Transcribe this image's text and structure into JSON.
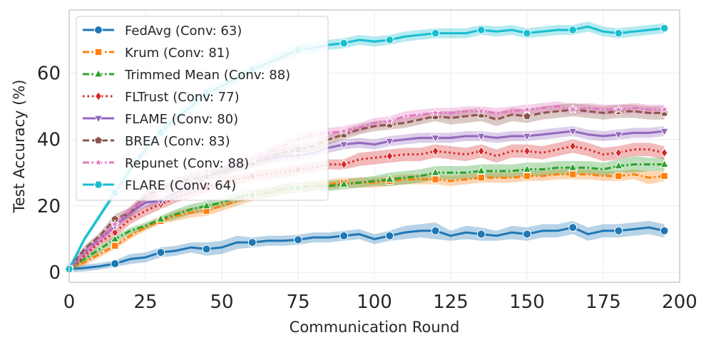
{
  "chart_data": {
    "type": "line",
    "title": "",
    "xlabel": "Communication Round",
    "ylabel": "Test Accuracy (%)",
    "xlim": [
      0,
      200
    ],
    "ylim": [
      -3,
      79
    ],
    "xticks": [
      0,
      25,
      50,
      75,
      100,
      125,
      150,
      175,
      200
    ],
    "yticks": [
      0,
      20,
      40,
      60
    ],
    "grid": true,
    "legend_position": "top-left",
    "x": [
      0,
      5,
      10,
      15,
      20,
      25,
      30,
      35,
      40,
      45,
      50,
      55,
      60,
      65,
      70,
      75,
      80,
      85,
      90,
      95,
      100,
      105,
      110,
      115,
      120,
      125,
      130,
      135,
      140,
      145,
      150,
      155,
      160,
      165,
      170,
      175,
      180,
      185,
      190,
      195
    ],
    "marker_every": 15,
    "series": [
      {
        "name": "FedAvg (Conv: 63)",
        "color": "#1f77b4",
        "dash": "solid",
        "marker": "circle",
        "values": [
          1,
          1.3,
          1.8,
          2.6,
          4,
          4.5,
          6,
          6.5,
          7.5,
          7,
          7.5,
          9,
          9,
          9.5,
          9.5,
          9.8,
          10.5,
          10.5,
          11,
          11.5,
          10,
          11,
          12,
          12.5,
          12.5,
          11,
          12,
          11.5,
          11,
          12,
          11.5,
          12.5,
          12.5,
          13.5,
          11.5,
          12.5,
          12.5,
          13,
          13.5,
          12.5
        ],
        "band": [
          1,
          1,
          1,
          1,
          1.5,
          1.5,
          1.5,
          1.5,
          1.5,
          2,
          2,
          2,
          1.5,
          1.5,
          1.5,
          1.5,
          1.5,
          1.5,
          1.5,
          1.5,
          1.5,
          1.5,
          2,
          2,
          2.5,
          1.5,
          2,
          2,
          1.5,
          2,
          2,
          2,
          2,
          2,
          2,
          2,
          2,
          2,
          2,
          2
        ]
      },
      {
        "name": "Krum (Conv: 81)",
        "color": "#ff7f0e",
        "dash": "dashdot",
        "marker": "square",
        "values": [
          1,
          3,
          5.5,
          8,
          11,
          13.5,
          15.5,
          17,
          18,
          18.5,
          20,
          21.5,
          23,
          24,
          25,
          25.5,
          26,
          26.5,
          27,
          27,
          27,
          27.5,
          28,
          28,
          28,
          27.5,
          28,
          28.5,
          28.5,
          28.5,
          29,
          29,
          29.5,
          29.5,
          29.5,
          29,
          29,
          29.5,
          28.5,
          29
        ],
        "band": [
          1,
          1,
          1,
          1,
          1,
          1,
          1,
          1.5,
          1.5,
          1.5,
          1.5,
          1.5,
          1.5,
          1.5,
          1.5,
          1.5,
          1.5,
          1.5,
          1.5,
          1.5,
          1.5,
          1.5,
          1.5,
          1.5,
          1.5,
          1.5,
          1.5,
          1.5,
          1.5,
          1.5,
          1.5,
          1.5,
          1.5,
          1.5,
          1.5,
          1.5,
          1.5,
          1.5,
          2,
          1.5
        ]
      },
      {
        "name": "Trimmed Mean (Conv: 88)",
        "color": "#2ca02c",
        "dash": "dashdot",
        "marker": "triangle-up",
        "values": [
          1,
          4,
          7,
          10,
          12.5,
          14,
          16,
          17.5,
          19,
          20,
          21,
          22.5,
          23.5,
          24,
          25,
          25.5,
          26,
          26,
          26.5,
          27,
          27.5,
          28,
          28.5,
          29,
          30,
          30,
          30,
          30.5,
          30.5,
          30.5,
          31,
          31,
          31.5,
          31.5,
          31.5,
          31,
          32,
          32.5,
          32.5,
          32.5
        ],
        "band": [
          1,
          1,
          1,
          1,
          1,
          1,
          1,
          1.5,
          1.5,
          1.5,
          1.5,
          1.5,
          1.5,
          1.5,
          1.5,
          1.5,
          1.5,
          1.5,
          1.5,
          1.5,
          1.5,
          2,
          2,
          2,
          2,
          2,
          2,
          2,
          2,
          2,
          2,
          2,
          2,
          2,
          2,
          2,
          2,
          2.5,
          2,
          2
        ]
      },
      {
        "name": "FLTrust (Conv: 77)",
        "color": "#d62728",
        "dash": "dot",
        "marker": "diamond",
        "values": [
          1,
          5,
          9,
          12,
          16,
          18.5,
          20.5,
          22.5,
          24,
          25.5,
          27,
          28,
          29,
          29.5,
          30,
          31,
          31.5,
          32.5,
          32.5,
          34,
          34.5,
          35,
          35.5,
          35.5,
          36.5,
          36,
          35.5,
          36.5,
          35,
          36.5,
          36.5,
          36,
          37,
          38,
          37,
          35.5,
          36,
          37,
          37,
          36
        ],
        "band": [
          1,
          1,
          1,
          1.5,
          1.5,
          1.5,
          1.5,
          1.5,
          1.5,
          1.5,
          1.5,
          1.5,
          1.5,
          1.5,
          1.5,
          1.5,
          1.5,
          1.5,
          1.5,
          2,
          2,
          2,
          2,
          2,
          2,
          2,
          2,
          2,
          2,
          2,
          2,
          2,
          2,
          2,
          2,
          2,
          2,
          2,
          2,
          2
        ]
      },
      {
        "name": "FLAME (Conv: 80)",
        "color": "#9467bd",
        "dash": "solid",
        "marker": "triangle-down",
        "values": [
          1,
          6,
          10,
          14,
          18,
          21,
          21.5,
          24,
          26,
          29,
          30.5,
          32,
          33,
          34,
          35,
          35,
          36,
          37.5,
          38.5,
          39,
          38.5,
          39.5,
          40,
          40.5,
          40.5,
          40.5,
          41,
          41,
          40.5,
          41,
          41,
          41.5,
          42,
          42.5,
          41.5,
          41,
          41.5,
          42,
          42,
          42.5
        ],
        "band": [
          1,
          1,
          1,
          1,
          1.5,
          1.5,
          1.5,
          1.5,
          1.5,
          1.5,
          1.5,
          1.5,
          1.5,
          1.5,
          1.5,
          1.5,
          1.5,
          1.5,
          1.5,
          1.5,
          1.5,
          1.5,
          1.5,
          1.5,
          1.5,
          1.5,
          1.5,
          1.5,
          1.5,
          1.5,
          1.5,
          1.5,
          1.5,
          1.5,
          1.5,
          1.5,
          1.5,
          1.5,
          1.5,
          1.5
        ]
      },
      {
        "name": "BREA (Conv: 83)",
        "color": "#8c564b",
        "dash": "dash",
        "marker": "pentagon",
        "values": [
          1,
          7,
          11,
          16,
          18,
          23,
          25,
          27,
          28,
          29,
          30,
          31.5,
          33,
          34.5,
          36,
          37,
          38,
          40,
          41.5,
          43,
          44,
          44.5,
          45,
          46,
          47,
          46.5,
          47,
          47.5,
          46,
          47.5,
          47,
          48,
          48.5,
          49,
          48.5,
          48,
          48.5,
          48.5,
          48,
          48
        ],
        "band": [
          1,
          1,
          1,
          1.5,
          1.5,
          1.5,
          1.5,
          1.5,
          1.5,
          1.5,
          1.5,
          1.5,
          1.5,
          1.5,
          1.5,
          1.5,
          1.5,
          1.5,
          1.5,
          1.5,
          1.5,
          1.5,
          1.5,
          1.5,
          1.5,
          2,
          2,
          2,
          2,
          2,
          2,
          2,
          2,
          2,
          2,
          2,
          2,
          2,
          2,
          2
        ]
      },
      {
        "name": "Repunet (Conv: 88)",
        "color": "#e377c2",
        "dash": "dashdot",
        "marker": "star",
        "values": [
          1,
          6,
          10,
          14.5,
          18.5,
          22,
          24.5,
          27,
          29,
          30.5,
          31.5,
          33,
          34,
          36,
          38,
          40,
          41.5,
          42,
          42.5,
          43.5,
          45,
          45.5,
          47,
          47.5,
          48,
          48,
          48.5,
          48.5,
          48,
          48.5,
          49,
          49.5,
          50,
          49,
          49.5,
          49,
          49,
          49.5,
          49,
          49
        ],
        "band": [
          1,
          1,
          1,
          1.5,
          1.5,
          1.5,
          1.5,
          1.5,
          1.5,
          1.5,
          1.5,
          1.5,
          1.5,
          1.5,
          1.5,
          1.5,
          1.5,
          1.5,
          1.5,
          1.5,
          1.5,
          1.5,
          1.5,
          1.5,
          1.5,
          1.5,
          1.5,
          1.5,
          1.5,
          1.5,
          1.5,
          1.5,
          1.5,
          1.5,
          1.5,
          1.5,
          1.5,
          1.5,
          1.5,
          1.5
        ]
      },
      {
        "name": "FLARE (Conv: 64)",
        "color": "#17becf",
        "dash": "solid",
        "marker": "hexagon",
        "values": [
          1,
          10,
          17,
          24,
          31,
          37,
          42,
          46.5,
          50,
          54,
          56,
          58.5,
          61,
          63,
          65,
          67,
          67.5,
          68.5,
          69,
          70,
          69.5,
          70,
          71,
          71.5,
          72,
          72,
          72,
          73,
          72.5,
          73,
          72,
          72.5,
          73,
          73,
          74,
          72.5,
          72,
          72.5,
          73,
          73.5
        ],
        "band": [
          1,
          1,
          1,
          1,
          1.5,
          1.5,
          1.5,
          1.5,
          1.5,
          1.5,
          1.5,
          1.5,
          1.5,
          1.5,
          1.5,
          1.5,
          1.5,
          1.5,
          1.5,
          1.5,
          1.5,
          1.5,
          1.5,
          1.5,
          1.5,
          1.5,
          1.5,
          1.5,
          1.5,
          1.5,
          1.5,
          1.5,
          1.5,
          1.5,
          1.5,
          1.5,
          1.5,
          1.5,
          1.5,
          1.5
        ]
      }
    ]
  }
}
